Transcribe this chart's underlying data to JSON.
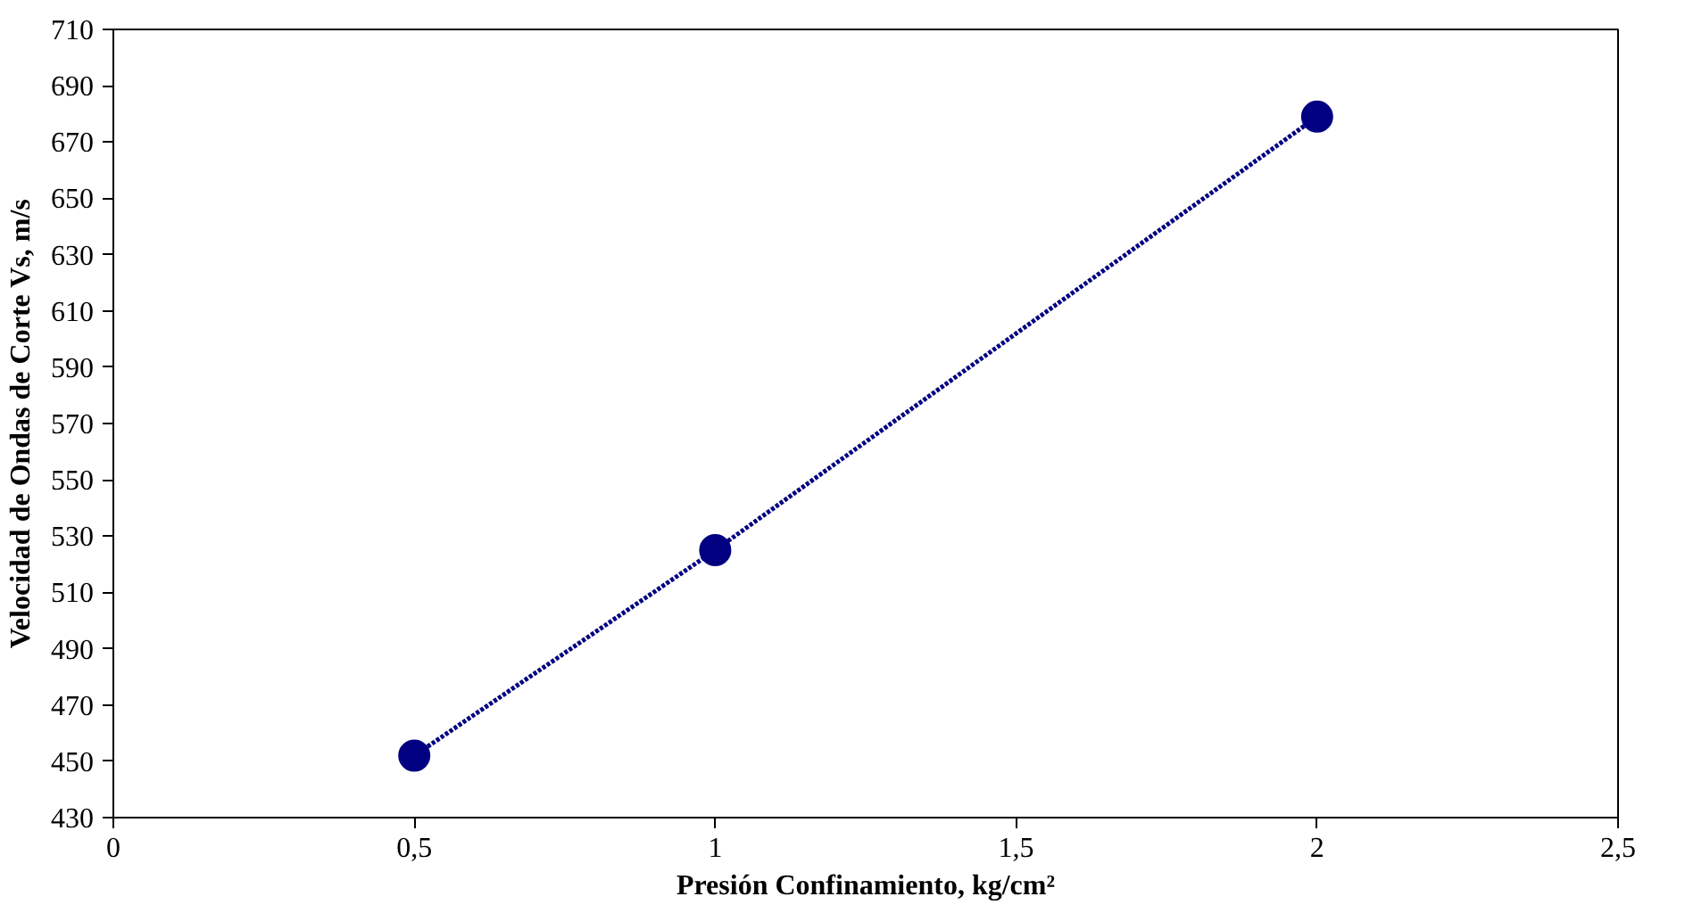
{
  "chart_data": {
    "type": "line",
    "xlabel": "Presión Confinamiento, kg/cm²",
    "ylabel": "Velocidad de Ondas de Corte Vs, m/s",
    "x": [
      0.5,
      1,
      2
    ],
    "series": [
      {
        "color": "#000080",
        "values": [
          452,
          525,
          679
        ]
      }
    ],
    "xlim": [
      0,
      2.5
    ],
    "xticks": [
      0,
      {
        "value": 0.5,
        "label": "0,5"
      },
      1,
      {
        "value": 1.5,
        "label": "1,5"
      },
      2,
      {
        "value": 2.5,
        "label": "2,5"
      }
    ],
    "ylim": [
      430,
      710
    ],
    "yticks": [
      430,
      450,
      470,
      490,
      510,
      530,
      550,
      570,
      590,
      610,
      630,
      650,
      670,
      690,
      710
    ],
    "grid": false,
    "marker": "circle",
    "line_style": "dotted"
  }
}
